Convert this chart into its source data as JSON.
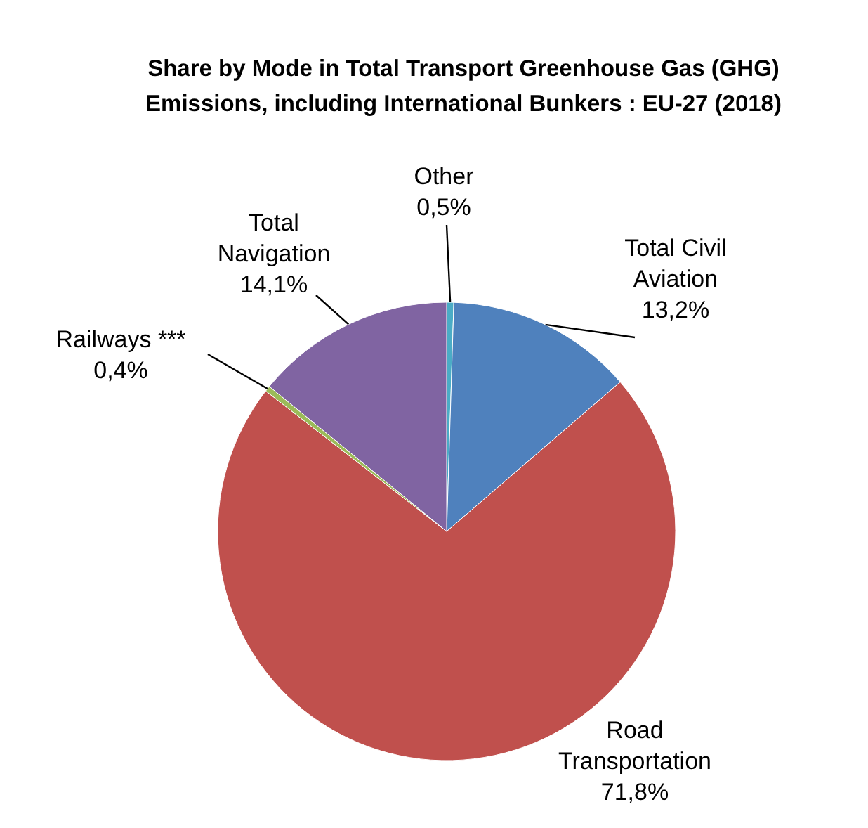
{
  "chart_data": {
    "type": "pie",
    "title": "Share by Mode in Total Transport Greenhouse Gas (GHG) Emissions, including International Bunkers : EU-27 (2018)",
    "categories": [
      "Other",
      "Total Civil Aviation",
      "Road Transportation",
      "Railways ***",
      "Total Navigation"
    ],
    "values": [
      0.5,
      13.2,
      71.8,
      0.4,
      14.1
    ],
    "colors": [
      "#4bacc6",
      "#4f81bd",
      "#c0504d",
      "#9bbb59",
      "#8064a2"
    ],
    "value_labels": [
      "0,5%",
      "13,2%",
      "71,8%",
      "0,4%",
      "14,1%"
    ]
  }
}
